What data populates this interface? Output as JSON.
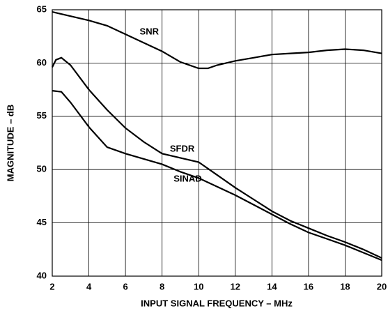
{
  "chart_data": {
    "type": "line",
    "x_label": "INPUT SIGNAL FREQUENCY – MHz",
    "y_label": "MAGNITUDE – dB",
    "xlim": [
      2,
      20
    ],
    "xticks": [
      2,
      4,
      6,
      8,
      10,
      12,
      14,
      16,
      18,
      20
    ],
    "ylim": [
      40,
      65
    ],
    "yticks": [
      40,
      45,
      50,
      55,
      60,
      65
    ],
    "grid": true,
    "series": [
      {
        "name": "SNR",
        "color": "#000000",
        "x": [
          2,
          3,
          4,
          5,
          6,
          7,
          8,
          9,
          10,
          10.5,
          11,
          12,
          13,
          14,
          15,
          16,
          17,
          18,
          19,
          20
        ],
        "values": [
          64.8,
          64.4,
          64.0,
          63.5,
          62.7,
          61.9,
          61.1,
          60.1,
          59.5,
          59.5,
          59.8,
          60.2,
          60.5,
          60.8,
          60.9,
          61.0,
          61.2,
          61.3,
          61.2,
          60.9
        ]
      },
      {
        "name": "SFDR",
        "color": "#000000",
        "x": [
          2,
          2.2,
          2.5,
          3,
          4,
          5,
          6,
          7,
          8,
          9,
          10,
          11,
          12,
          13,
          14,
          15,
          16,
          17,
          18,
          19,
          20
        ],
        "values": [
          59.6,
          60.3,
          60.5,
          59.8,
          57.5,
          55.6,
          53.9,
          52.6,
          51.5,
          51.1,
          50.7,
          49.5,
          48.3,
          47.2,
          46.1,
          45.2,
          44.5,
          43.8,
          43.2,
          42.5,
          41.7
        ]
      },
      {
        "name": "SINAD",
        "color": "#000000",
        "x": [
          2,
          2.5,
          3,
          4,
          5,
          6,
          7,
          8,
          9,
          10,
          11,
          12,
          13,
          14,
          15,
          16,
          17,
          18,
          19,
          20
        ],
        "values": [
          57.4,
          57.3,
          56.3,
          54.0,
          52.1,
          51.5,
          51.0,
          50.5,
          49.8,
          49.2,
          48.4,
          47.6,
          46.7,
          45.8,
          44.9,
          44.1,
          43.5,
          42.9,
          42.2,
          41.5
        ]
      }
    ]
  }
}
